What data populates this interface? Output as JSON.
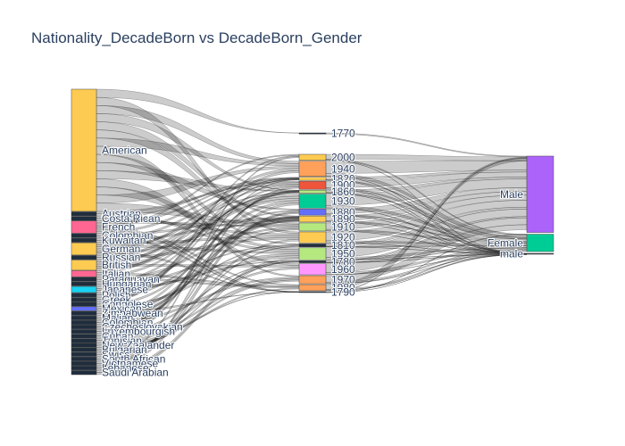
{
  "chart": {
    "title": "Nationality_DecadeBorn vs DecadeBorn_Gender"
  },
  "chart_data": {
    "type": "sankey",
    "title": "Nationality_DecadeBorn vs DecadeBorn_Gender",
    "columns": [
      {
        "nodes": [
          {
            "label": "American",
            "weight": 60,
            "color": "#FECB52"
          },
          {
            "label": "Austrian",
            "weight": 2,
            "color": "#1f2d3d"
          },
          {
            "label": "Costa Rican",
            "weight": 2,
            "color": "#1f2d3d"
          },
          {
            "label": "French",
            "weight": 6,
            "color": "#FF6692"
          },
          {
            "label": "Colombian",
            "weight": 2,
            "color": "#1f2d3d"
          },
          {
            "label": "Kuwaitan",
            "weight": 2,
            "color": "#1f2d3d"
          },
          {
            "label": "German",
            "weight": 6,
            "color": "#FECB52"
          },
          {
            "label": "Russian",
            "weight": 2,
            "color": "#1f2d3d"
          },
          {
            "label": "British",
            "weight": 5,
            "color": "#FECB52"
          },
          {
            "label": "Italian",
            "weight": 3,
            "color": "#FF6692"
          },
          {
            "label": "Paraguayan",
            "weight": 2,
            "color": "#1f2d3d"
          },
          {
            "label": "Hungarian",
            "weight": 2,
            "color": "#1f2d3d"
          },
          {
            "label": "Japanese",
            "weight": 3,
            "color": "#19D3F3"
          },
          {
            "label": "Polish",
            "weight": 2,
            "color": "#1f2d3d"
          },
          {
            "label": "Greek",
            "weight": 2,
            "color": "#1f2d3d"
          },
          {
            "label": "Congolese",
            "weight": 2,
            "color": "#1f2d3d"
          },
          {
            "label": "Mexican",
            "weight": 2,
            "color": "#636EFA"
          },
          {
            "label": "Zimbabwean",
            "weight": 2,
            "color": "#1f2d3d"
          },
          {
            "label": "Malian",
            "weight": 2,
            "color": "#1f2d3d"
          },
          {
            "label": "Colombian",
            "weight": 2,
            "color": "#1f2d3d"
          },
          {
            "label": "Czechoslovakian",
            "weight": 2,
            "color": "#1f2d3d"
          },
          {
            "label": "Luxembourgish",
            "weight": 2,
            "color": "#1f2d3d"
          },
          {
            "label": "Cuban",
            "weight": 2,
            "color": "#1f2d3d"
          },
          {
            "label": "Tunisian",
            "weight": 2,
            "color": "#1f2d3d"
          },
          {
            "label": "New Zealander",
            "weight": 2,
            "color": "#1f2d3d"
          },
          {
            "label": "Bulgarian",
            "weight": 2,
            "color": "#1f2d3d"
          },
          {
            "label": "Swiss",
            "weight": 2,
            "color": "#1f2d3d"
          },
          {
            "label": "South African",
            "weight": 2,
            "color": "#1f2d3d"
          },
          {
            "label": "Vietnamese",
            "weight": 2,
            "color": "#1f2d3d"
          },
          {
            "label": "Lebanese",
            "weight": 2,
            "color": "#1f2d3d"
          },
          {
            "label": "Saudi Arabian",
            "weight": 2,
            "color": "#1f2d3d"
          }
        ]
      },
      {
        "nodes": [
          {
            "label": "1770",
            "weight": 1,
            "color": "#1f2d3d"
          },
          {
            "label": "2000",
            "weight": 6,
            "color": "#FECB52"
          },
          {
            "label": "1940",
            "weight": 15,
            "color": "#FFA15A"
          },
          {
            "label": "1820",
            "weight": 3,
            "color": "#FECB52"
          },
          {
            "label": "1900",
            "weight": 8,
            "color": "#EF553B"
          },
          {
            "label": "1860",
            "weight": 3,
            "color": "#B6E880"
          },
          {
            "label": "1930",
            "weight": 14,
            "color": "#00CC96"
          },
          {
            "label": "1880",
            "weight": 6,
            "color": "#636EFA"
          },
          {
            "label": "1890",
            "weight": 6,
            "color": "#FECB52"
          },
          {
            "label": "1910",
            "weight": 8,
            "color": "#B6E880"
          },
          {
            "label": "1920",
            "weight": 11,
            "color": "#FECB52"
          },
          {
            "label": "1810",
            "weight": 3,
            "color": "#1f2d3d"
          },
          {
            "label": "1950",
            "weight": 12,
            "color": "#B6E880"
          },
          {
            "label": "1780",
            "weight": 2,
            "color": "#1f2d3d"
          },
          {
            "label": "1960",
            "weight": 11,
            "color": "#FF97FF"
          },
          {
            "label": "1970",
            "weight": 8,
            "color": "#FFA15A"
          },
          {
            "label": "1980",
            "weight": 6,
            "color": "#FFA15A"
          },
          {
            "label": "1790",
            "weight": 1,
            "color": "#1f2d3d"
          }
        ]
      },
      {
        "nodes": [
          {
            "label": "Male",
            "weight": 88,
            "color": "#AB63FA"
          },
          {
            "label": "Female",
            "weight": 20,
            "color": "#00CC96"
          },
          {
            "label": "male",
            "weight": 1,
            "color": "#1f2d3d"
          }
        ]
      }
    ],
    "links_note": "Dense set of grey semi-transparent links connecting nationalities to birth decades and birth decades to gender."
  }
}
